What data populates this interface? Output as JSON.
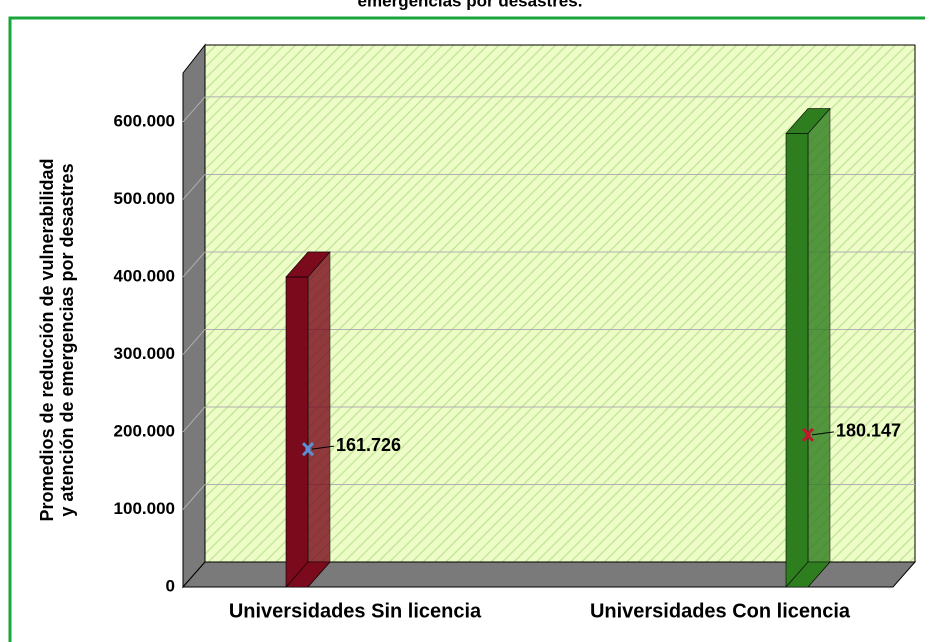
{
  "chart_data": {
    "type": "range_bar",
    "title": "emergencias por desastres.",
    "y_label_lines": [
      "Promedios de reducción de vulnerabilidad",
      "y atención de emergencias por desastres"
    ],
    "categories": [
      "Universidades Sin licencia",
      "Universidades Con licencia"
    ],
    "series": [
      {
        "colors": [
          "#7a0a1c",
          "#2e7d1e"
        ],
        "values": [
          400,
          585
        ]
      }
    ],
    "means": [
      161.726,
      180.147
    ],
    "mean_colors": [
      "#5b8fd6",
      "#c0182c"
    ],
    "ylim": [
      0,
      667
    ],
    "yticks": [
      {
        "value": 0,
        "label": "0"
      },
      {
        "value": 100,
        "label": "100.000"
      },
      {
        "value": 200,
        "label": "200.000"
      },
      {
        "value": 300,
        "label": "300.000"
      },
      {
        "value": 400,
        "label": "400.000"
      },
      {
        "value": 500,
        "label": "500.000"
      },
      {
        "value": 600,
        "label": "600.000"
      }
    ],
    "grid": true
  }
}
